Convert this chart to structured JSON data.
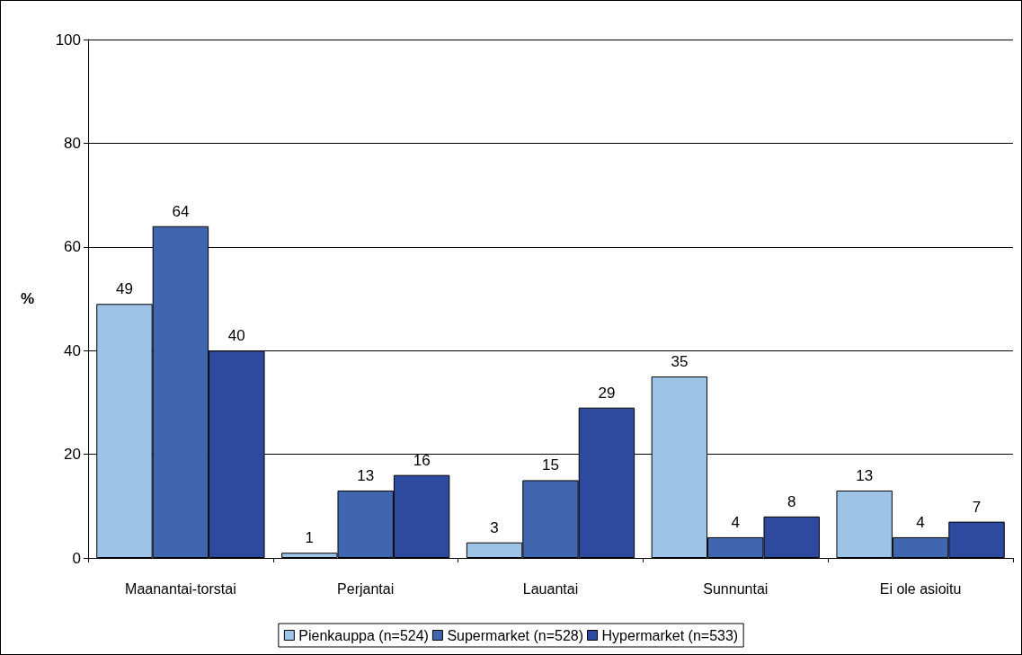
{
  "chart_data": {
    "type": "bar",
    "ylabel": "%",
    "categories": [
      "Maanantai-torstai",
      "Perjantai",
      "Lauantai",
      "Sunnuntai",
      "Ei ole asioitu"
    ],
    "series": [
      {
        "name": "Pienkauppa (n=524)",
        "color": "#9dc3e6",
        "values": [
          49,
          1,
          3,
          35,
          13
        ]
      },
      {
        "name": "Supermarket (n=528)",
        "color": "#4066b0",
        "values": [
          64,
          13,
          15,
          4,
          4
        ]
      },
      {
        "name": "Hypermarket (n=533)",
        "color": "#2e4a9e",
        "values": [
          40,
          16,
          29,
          8,
          7
        ]
      }
    ],
    "ylim": [
      0,
      100
    ],
    "yticks": [
      0,
      20,
      40,
      60,
      80,
      100
    ],
    "grid": "y",
    "legend": "bottom",
    "data_labels": true
  }
}
